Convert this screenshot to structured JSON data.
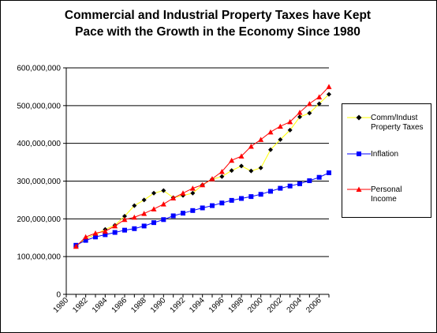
{
  "chart_data": {
    "type": "line",
    "title_line1": "Commercial and Industrial Property Taxes have Kept",
    "title_line2": "Pace with the Growth in the Economy Since 1980",
    "ylim": [
      0,
      600000000
    ],
    "y_ticks": [
      0,
      100000000,
      200000000,
      300000000,
      400000000,
      500000000,
      600000000
    ],
    "y_tick_labels": [
      "0",
      "100,000,000",
      "200,000,000",
      "300,000,000",
      "400,000,000",
      "500,000,000",
      "600,000,000"
    ],
    "xlim": [
      1980,
      2007
    ],
    "x_ticks": [
      1980,
      1982,
      1984,
      1986,
      1988,
      1990,
      1992,
      1994,
      1996,
      1998,
      2000,
      2002,
      2004,
      2006
    ],
    "grid": "horizontal",
    "legend_position": "right",
    "series": [
      {
        "name": "Comm/Indust Property Taxes",
        "color": "#ffff00",
        "marker_color": "#000000",
        "marker": "diamond",
        "x": [
          1981,
          1982,
          1983,
          1984,
          1985,
          1986,
          1987,
          1988,
          1989,
          1990,
          1991,
          1992,
          1993,
          1994,
          1995,
          1996,
          1997,
          1998,
          1999,
          2000,
          2001,
          2002,
          2003,
          2004,
          2005,
          2006,
          2007
        ],
        "values": [
          127000000,
          148000000,
          158000000,
          172000000,
          183000000,
          207000000,
          235000000,
          250000000,
          268000000,
          275000000,
          256000000,
          262000000,
          268000000,
          290000000,
          305000000,
          312000000,
          328000000,
          340000000,
          327000000,
          335000000,
          383000000,
          410000000,
          435000000,
          470000000,
          480000000,
          505000000,
          530000000
        ]
      },
      {
        "name": "Inflation",
        "color": "#0000ff",
        "marker_color": "#0000ff",
        "marker": "square",
        "x": [
          1981,
          1982,
          1983,
          1984,
          1985,
          1986,
          1987,
          1988,
          1989,
          1990,
          1991,
          1992,
          1993,
          1994,
          1995,
          1996,
          1997,
          1998,
          1999,
          2000,
          2001,
          2002,
          2003,
          2004,
          2005,
          2006,
          2007
        ],
        "values": [
          130000000,
          143000000,
          152000000,
          158000000,
          164000000,
          170000000,
          174000000,
          181000000,
          190000000,
          198000000,
          208000000,
          215000000,
          222000000,
          229000000,
          235000000,
          242000000,
          249000000,
          254000000,
          259000000,
          265000000,
          273000000,
          281000000,
          287000000,
          293000000,
          301000000,
          310000000,
          322000000
        ]
      },
      {
        "name": "Personal Income",
        "color": "#ff0000",
        "marker_color": "#ff0000",
        "marker": "triangle",
        "x": [
          1981,
          1982,
          1983,
          1984,
          1985,
          1986,
          1987,
          1988,
          1989,
          1990,
          1991,
          1992,
          1993,
          1994,
          1995,
          1996,
          1997,
          1998,
          1999,
          2000,
          2001,
          2002,
          2003,
          2004,
          2005,
          2006,
          2007
        ],
        "values": [
          127000000,
          152000000,
          162000000,
          167000000,
          181000000,
          198000000,
          204000000,
          214000000,
          226000000,
          239000000,
          255000000,
          268000000,
          281000000,
          290000000,
          306000000,
          325000000,
          355000000,
          366000000,
          392000000,
          410000000,
          430000000,
          445000000,
          457000000,
          482000000,
          505000000,
          523000000,
          550000000
        ]
      }
    ],
    "legend_labels": {
      "s0_line1": "Comm/Indust",
      "s0_line2": "Property Taxes",
      "s1_line1": "Inflation",
      "s2_line1": "Personal",
      "s2_line2": "Income"
    }
  }
}
